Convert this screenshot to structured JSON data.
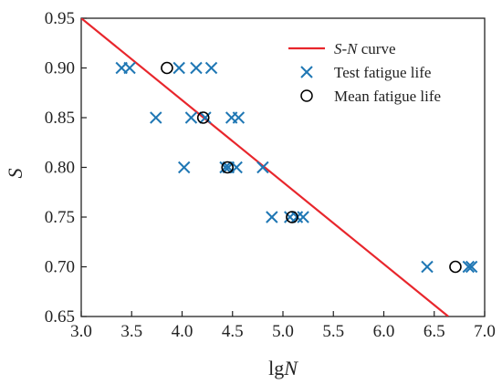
{
  "chart_data": {
    "type": "scatter",
    "title": "",
    "xlabel_prefix": "lg",
    "xlabel_var": "N",
    "ylabel": "S",
    "xlim": [
      3.0,
      7.0
    ],
    "ylim": [
      0.65,
      0.95
    ],
    "xticks": [
      "3.0",
      "3.5",
      "4.0",
      "4.5",
      "5.0",
      "5.5",
      "6.0",
      "6.5",
      "7.0"
    ],
    "yticks": [
      "0.65",
      "0.70",
      "0.75",
      "0.80",
      "0.85",
      "0.90",
      "0.95"
    ],
    "legend_position": "top-right",
    "series": [
      {
        "name_parts": [
          "S",
          "-",
          "N",
          " curve"
        ],
        "kind": "line",
        "color": "#e8262c",
        "x": [
          3.0,
          6.64
        ],
        "y": [
          0.95,
          0.65
        ]
      },
      {
        "name": "Test fatigue life",
        "kind": "cross",
        "color": "#1f77b4",
        "points": [
          [
            3.4,
            0.9
          ],
          [
            3.48,
            0.9
          ],
          [
            3.97,
            0.9
          ],
          [
            4.14,
            0.9
          ],
          [
            4.29,
            0.9
          ],
          [
            3.74,
            0.85
          ],
          [
            4.09,
            0.85
          ],
          [
            4.23,
            0.85
          ],
          [
            4.49,
            0.85
          ],
          [
            4.56,
            0.85
          ],
          [
            4.02,
            0.8
          ],
          [
            4.43,
            0.8
          ],
          [
            4.46,
            0.8
          ],
          [
            4.54,
            0.8
          ],
          [
            4.8,
            0.8
          ],
          [
            4.89,
            0.75
          ],
          [
            5.07,
            0.75
          ],
          [
            5.14,
            0.75
          ],
          [
            5.2,
            0.75
          ],
          [
            6.43,
            0.7
          ],
          [
            6.84,
            0.7
          ],
          [
            6.87,
            0.7
          ]
        ]
      },
      {
        "name": "Mean fatigue life",
        "kind": "circle",
        "color": "#000000",
        "points": [
          [
            3.85,
            0.9
          ],
          [
            4.21,
            0.85
          ],
          [
            4.45,
            0.8
          ],
          [
            5.09,
            0.75
          ],
          [
            6.71,
            0.7
          ]
        ]
      }
    ]
  }
}
